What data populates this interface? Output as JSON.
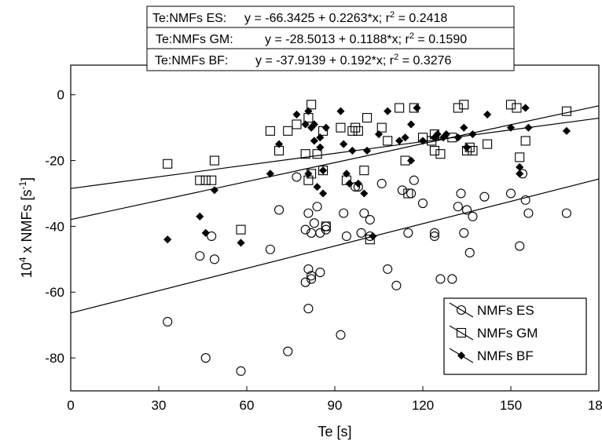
{
  "chart_data": {
    "type": "scatter",
    "xlabel": "Te [s]",
    "ylabel_base": "10",
    "ylabel_exp": "4",
    "ylabel_mid": " x NMFs [s",
    "ylabel_unit_exp": "-1",
    "ylabel_end": "]",
    "xlim": [
      0,
      180
    ],
    "ylim": [
      -90,
      9
    ],
    "xticks": [
      0,
      30,
      60,
      90,
      120,
      150,
      180
    ],
    "yticks": [
      0,
      -20,
      -40,
      -60,
      -80
    ],
    "grid": false,
    "legend_placement": "bottom-right",
    "regression_box": [
      {
        "label": "Te:NMFs ES:",
        "equation": "y = -66.3425 + 0.2263*x; r",
        "r2_exp": "2",
        "r2_value": " = 0.2418"
      },
      {
        "label": "Te:NMFs GM:",
        "equation": "y = -28.5013 + 0.1188*x; r",
        "r2_exp": "2",
        "r2_value": " = 0.1590"
      },
      {
        "label": "Te:NMFs BF:",
        "equation": "y = -37.9139 + 0.192*x; r",
        "r2_exp": "2",
        "r2_value": " = 0.3276"
      }
    ],
    "series": [
      {
        "name": "NMFs ES",
        "marker": "circle",
        "intercept": -66.3425,
        "slope": 0.2263,
        "points": [
          [
            33,
            -69
          ],
          [
            44,
            -49
          ],
          [
            46,
            -80
          ],
          [
            48,
            -43
          ],
          [
            49,
            -50
          ],
          [
            58,
            -84
          ],
          [
            68,
            -47
          ],
          [
            71,
            -35
          ],
          [
            74,
            -78
          ],
          [
            77,
            -25
          ],
          [
            80,
            -57
          ],
          [
            80,
            -41
          ],
          [
            81,
            -36
          ],
          [
            81,
            -53
          ],
          [
            81,
            -65
          ],
          [
            82,
            -42
          ],
          [
            82,
            -56
          ],
          [
            82,
            -55
          ],
          [
            83,
            -39
          ],
          [
            84,
            -34
          ],
          [
            85,
            -54
          ],
          [
            85,
            -42
          ],
          [
            87,
            -40
          ],
          [
            87,
            -41
          ],
          [
            92,
            -73
          ],
          [
            93,
            -36
          ],
          [
            94,
            -43
          ],
          [
            97,
            -28
          ],
          [
            98,
            -28
          ],
          [
            99,
            -42
          ],
          [
            100,
            -36
          ],
          [
            102,
            -38
          ],
          [
            102,
            -43
          ],
          [
            106,
            -27
          ],
          [
            108,
            -53
          ],
          [
            111,
            -58
          ],
          [
            113,
            -29
          ],
          [
            115,
            -42
          ],
          [
            116,
            -30
          ],
          [
            117,
            -26
          ],
          [
            120,
            -33
          ],
          [
            124,
            -42
          ],
          [
            124,
            -43
          ],
          [
            126,
            -56
          ],
          [
            130,
            -56
          ],
          [
            132,
            -34
          ],
          [
            133,
            -30
          ],
          [
            134,
            -42
          ],
          [
            135,
            -35
          ],
          [
            136,
            -48
          ],
          [
            137,
            -37
          ],
          [
            141,
            -31
          ],
          [
            150,
            -30
          ],
          [
            153,
            -46
          ],
          [
            154,
            -24
          ],
          [
            155,
            -32
          ],
          [
            156,
            -36
          ],
          [
            169,
            -36
          ]
        ]
      },
      {
        "name": "NMFs GM",
        "marker": "square",
        "intercept": -28.5013,
        "slope": 0.1188,
        "points": [
          [
            33,
            -21
          ],
          [
            44,
            -26
          ],
          [
            46,
            -26
          ],
          [
            48,
            -26
          ],
          [
            49,
            -20
          ],
          [
            58,
            -41
          ],
          [
            68,
            -11
          ],
          [
            71,
            -17
          ],
          [
            74,
            -11
          ],
          [
            77,
            -9
          ],
          [
            80,
            -18
          ],
          [
            81,
            -7
          ],
          [
            81,
            -26
          ],
          [
            82,
            -3
          ],
          [
            82,
            -24
          ],
          [
            84,
            -18
          ],
          [
            86,
            -23
          ],
          [
            86,
            -11
          ],
          [
            87,
            -40
          ],
          [
            92,
            -10
          ],
          [
            94,
            -26
          ],
          [
            96,
            -11
          ],
          [
            97,
            -10
          ],
          [
            98,
            -11
          ],
          [
            100,
            -23
          ],
          [
            101,
            -7
          ],
          [
            102,
            -44
          ],
          [
            106,
            -10
          ],
          [
            108,
            -14
          ],
          [
            112,
            -4
          ],
          [
            114,
            -20
          ],
          [
            115,
            -30
          ],
          [
            117,
            -4
          ],
          [
            120,
            -13
          ],
          [
            123,
            -14
          ],
          [
            124,
            -17
          ],
          [
            124,
            -12
          ],
          [
            126,
            -18
          ],
          [
            130,
            -13
          ],
          [
            132,
            -4
          ],
          [
            134,
            -3
          ],
          [
            135,
            -17
          ],
          [
            136,
            -16
          ],
          [
            137,
            -17
          ],
          [
            142,
            -15
          ],
          [
            150,
            -3
          ],
          [
            152,
            -4
          ],
          [
            153,
            -19
          ],
          [
            155,
            -14
          ],
          [
            169,
            -5
          ]
        ]
      },
      {
        "name": "NMFs BF",
        "marker": "diamond",
        "intercept": -37.9139,
        "slope": 0.192,
        "points": [
          [
            33,
            -44
          ],
          [
            44,
            -37
          ],
          [
            46,
            -42
          ],
          [
            49,
            -29
          ],
          [
            58,
            -45
          ],
          [
            68,
            -24
          ],
          [
            71,
            -15
          ],
          [
            77,
            -6
          ],
          [
            80,
            -9
          ],
          [
            81,
            -5
          ],
          [
            81,
            -24
          ],
          [
            82,
            -10
          ],
          [
            83,
            -9
          ],
          [
            83,
            -14
          ],
          [
            84,
            -28
          ],
          [
            85,
            -13
          ],
          [
            85,
            -16
          ],
          [
            86,
            -30
          ],
          [
            86,
            -23
          ],
          [
            87,
            -10
          ],
          [
            92,
            -5
          ],
          [
            93,
            -15
          ],
          [
            94,
            -24
          ],
          [
            95,
            -27
          ],
          [
            96,
            -17
          ],
          [
            98,
            -27
          ],
          [
            100,
            -30
          ],
          [
            101,
            -17
          ],
          [
            103,
            -43
          ],
          [
            105,
            -12
          ],
          [
            108,
            -5
          ],
          [
            112,
            -14
          ],
          [
            114,
            -13
          ],
          [
            116,
            -9
          ],
          [
            116,
            -20
          ],
          [
            118,
            -4
          ],
          [
            120,
            -14
          ],
          [
            124,
            -13
          ],
          [
            125,
            -12
          ],
          [
            127,
            -13
          ],
          [
            128,
            -12
          ],
          [
            132,
            -13
          ],
          [
            134,
            -10
          ],
          [
            135,
            -16
          ],
          [
            137,
            -12
          ],
          [
            142,
            -6
          ],
          [
            150,
            -10
          ],
          [
            153,
            -22
          ],
          [
            153,
            -24
          ],
          [
            155,
            -4
          ],
          [
            156,
            -10
          ],
          [
            169,
            -11
          ]
        ]
      }
    ]
  }
}
